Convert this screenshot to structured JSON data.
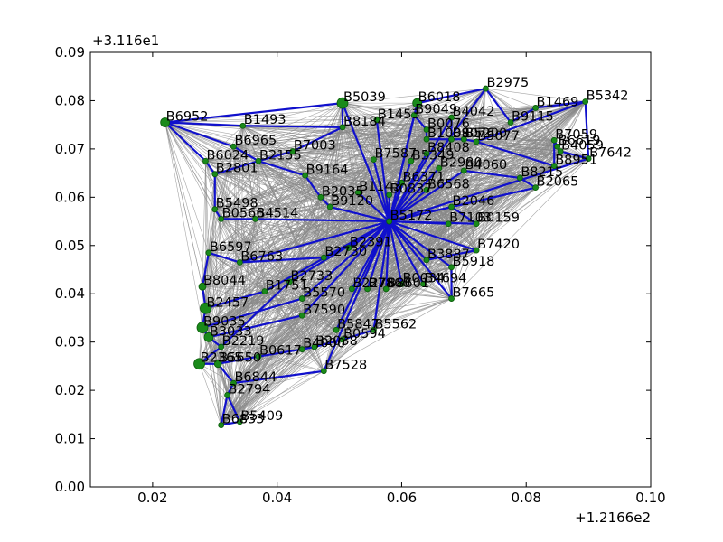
{
  "chart_data": {
    "type": "scatter",
    "subtype": "network-graph",
    "title": "",
    "xlabel": "",
    "ylabel": "",
    "x_offset_label": "+1.2166e2",
    "y_offset_label": "+3.116e1",
    "xlim": [
      0.01,
      0.1
    ],
    "ylim": [
      0.0,
      0.09
    ],
    "x_ticks": [
      0.02,
      0.04,
      0.06,
      0.08,
      0.1
    ],
    "x_tick_labels": [
      "0.02",
      "0.04",
      "0.06",
      "0.08",
      "0.10"
    ],
    "y_ticks": [
      0.0,
      0.01,
      0.02,
      0.03,
      0.04,
      0.05,
      0.06,
      0.07,
      0.08,
      0.09
    ],
    "y_tick_labels": [
      "0.00",
      "0.01",
      "0.02",
      "0.03",
      "0.04",
      "0.05",
      "0.06",
      "0.07",
      "0.08",
      "0.09"
    ],
    "grid": false,
    "colors": {
      "node": "#1a8a1a",
      "node_edge": "#0a5a0a",
      "mesh_edge": "#888888",
      "path_edge": "#1010cc"
    },
    "hub": "B5172",
    "nodes": [
      {
        "id": "B5172",
        "x": 0.058,
        "y": 0.055,
        "s": 3
      },
      {
        "id": "B2975",
        "x": 0.0735,
        "y": 0.0825,
        "s": 3
      },
      {
        "id": "B5342",
        "x": 0.0895,
        "y": 0.0798,
        "s": 3
      },
      {
        "id": "B1469",
        "x": 0.0815,
        "y": 0.0785,
        "s": 3
      },
      {
        "id": "B9115",
        "x": 0.0775,
        "y": 0.0755,
        "s": 3
      },
      {
        "id": "B7059",
        "x": 0.0845,
        "y": 0.0718,
        "s": 3
      },
      {
        "id": "B6619",
        "x": 0.085,
        "y": 0.0705,
        "s": 3
      },
      {
        "id": "B4059",
        "x": 0.0855,
        "y": 0.0695,
        "s": 3
      },
      {
        "id": "B7642",
        "x": 0.09,
        "y": 0.068,
        "s": 3
      },
      {
        "id": "B8951",
        "x": 0.0845,
        "y": 0.0665,
        "s": 3
      },
      {
        "id": "B5077",
        "x": 0.072,
        "y": 0.0715,
        "s": 3
      },
      {
        "id": "B5200",
        "x": 0.07,
        "y": 0.072,
        "s": 3
      },
      {
        "id": "B9076",
        "x": 0.068,
        "y": 0.072,
        "s": 3
      },
      {
        "id": "B1008",
        "x": 0.064,
        "y": 0.072,
        "s": 3
      },
      {
        "id": "B4042",
        "x": 0.068,
        "y": 0.0765,
        "s": 3
      },
      {
        "id": "B9049",
        "x": 0.062,
        "y": 0.077,
        "s": 3
      },
      {
        "id": "B0076",
        "x": 0.064,
        "y": 0.074,
        "s": 3
      },
      {
        "id": "B6018",
        "x": 0.0625,
        "y": 0.0795,
        "s": 5
      },
      {
        "id": "B5039",
        "x": 0.0505,
        "y": 0.0795,
        "s": 6
      },
      {
        "id": "B1453",
        "x": 0.056,
        "y": 0.076,
        "s": 3
      },
      {
        "id": "B8184",
        "x": 0.0505,
        "y": 0.0745,
        "s": 3
      },
      {
        "id": "B6952",
        "x": 0.022,
        "y": 0.0755,
        "s": 5
      },
      {
        "id": "B1493",
        "x": 0.0345,
        "y": 0.0748,
        "s": 3
      },
      {
        "id": "B6965",
        "x": 0.033,
        "y": 0.0705,
        "s": 3
      },
      {
        "id": "B7003",
        "x": 0.0425,
        "y": 0.0695,
        "s": 3
      },
      {
        "id": "B6024",
        "x": 0.0285,
        "y": 0.0675,
        "s": 3
      },
      {
        "id": "B2155",
        "x": 0.037,
        "y": 0.0675,
        "s": 3
      },
      {
        "id": "B2801",
        "x": 0.03,
        "y": 0.0648,
        "s": 3
      },
      {
        "id": "B9164",
        "x": 0.0445,
        "y": 0.0645,
        "s": 3
      },
      {
        "id": "B7587",
        "x": 0.0555,
        "y": 0.0678,
        "s": 3
      },
      {
        "id": "B5349",
        "x": 0.0615,
        "y": 0.0675,
        "s": 3
      },
      {
        "id": "B8408",
        "x": 0.064,
        "y": 0.069,
        "s": 3
      },
      {
        "id": "B2980",
        "x": 0.066,
        "y": 0.066,
        "s": 3
      },
      {
        "id": "B4060",
        "x": 0.07,
        "y": 0.0655,
        "s": 3
      },
      {
        "id": "B8215",
        "x": 0.079,
        "y": 0.064,
        "s": 3
      },
      {
        "id": "B2065",
        "x": 0.0815,
        "y": 0.062,
        "s": 3
      },
      {
        "id": "B6371",
        "x": 0.06,
        "y": 0.063,
        "s": 3
      },
      {
        "id": "B1143",
        "x": 0.053,
        "y": 0.061,
        "s": 3
      },
      {
        "id": "B0837",
        "x": 0.058,
        "y": 0.0605,
        "s": 3
      },
      {
        "id": "B6568",
        "x": 0.064,
        "y": 0.0615,
        "s": 3
      },
      {
        "id": "B2035",
        "x": 0.047,
        "y": 0.06,
        "s": 3
      },
      {
        "id": "B9120",
        "x": 0.0485,
        "y": 0.058,
        "s": 3
      },
      {
        "id": "B5498",
        "x": 0.03,
        "y": 0.0575,
        "s": 3
      },
      {
        "id": "B0566",
        "x": 0.031,
        "y": 0.0555,
        "s": 3
      },
      {
        "id": "B4514",
        "x": 0.0365,
        "y": 0.0555,
        "s": 3
      },
      {
        "id": "B2046",
        "x": 0.068,
        "y": 0.058,
        "s": 3
      },
      {
        "id": "B7103",
        "x": 0.0675,
        "y": 0.0545,
        "s": 3
      },
      {
        "id": "B0159",
        "x": 0.072,
        "y": 0.0545,
        "s": 3
      },
      {
        "id": "B2391",
        "x": 0.0515,
        "y": 0.0495,
        "s": 3
      },
      {
        "id": "B2730",
        "x": 0.0475,
        "y": 0.0475,
        "s": 3
      },
      {
        "id": "B6597",
        "x": 0.029,
        "y": 0.0485,
        "s": 3
      },
      {
        "id": "B6763",
        "x": 0.034,
        "y": 0.0465,
        "s": 3
      },
      {
        "id": "B3887",
        "x": 0.064,
        "y": 0.047,
        "s": 3
      },
      {
        "id": "B7420",
        "x": 0.072,
        "y": 0.049,
        "s": 3
      },
      {
        "id": "B5918",
        "x": 0.068,
        "y": 0.0455,
        "s": 3
      },
      {
        "id": "B8044",
        "x": 0.028,
        "y": 0.0415,
        "s": 4
      },
      {
        "id": "B2733",
        "x": 0.042,
        "y": 0.0425,
        "s": 3
      },
      {
        "id": "B1751",
        "x": 0.038,
        "y": 0.0405,
        "s": 3
      },
      {
        "id": "B4694",
        "x": 0.0635,
        "y": 0.042,
        "s": 3
      },
      {
        "id": "B0034",
        "x": 0.06,
        "y": 0.042,
        "s": 3
      },
      {
        "id": "B2276",
        "x": 0.052,
        "y": 0.041,
        "s": 3
      },
      {
        "id": "B7860",
        "x": 0.0545,
        "y": 0.041,
        "s": 3
      },
      {
        "id": "B8601",
        "x": 0.0575,
        "y": 0.041,
        "s": 3
      },
      {
        "id": "B7665",
        "x": 0.068,
        "y": 0.039,
        "s": 3
      },
      {
        "id": "B2457",
        "x": 0.0285,
        "y": 0.037,
        "s": 6
      },
      {
        "id": "B5570",
        "x": 0.044,
        "y": 0.039,
        "s": 3
      },
      {
        "id": "B7590",
        "x": 0.044,
        "y": 0.0355,
        "s": 3
      },
      {
        "id": "B9035",
        "x": 0.028,
        "y": 0.033,
        "s": 6
      },
      {
        "id": "B5847",
        "x": 0.0495,
        "y": 0.0325,
        "s": 3
      },
      {
        "id": "B5562",
        "x": 0.0555,
        "y": 0.0325,
        "s": 3
      },
      {
        "id": "B0594",
        "x": 0.0505,
        "y": 0.0305,
        "s": 3
      },
      {
        "id": "B3033",
        "x": 0.029,
        "y": 0.031,
        "s": 5
      },
      {
        "id": "B2219",
        "x": 0.031,
        "y": 0.029,
        "s": 3
      },
      {
        "id": "B4000",
        "x": 0.044,
        "y": 0.0285,
        "s": 3
      },
      {
        "id": "B2038",
        "x": 0.046,
        "y": 0.029,
        "s": 3
      },
      {
        "id": "B0617",
        "x": 0.037,
        "y": 0.027,
        "s": 3
      },
      {
        "id": "B2365",
        "x": 0.0275,
        "y": 0.0255,
        "s": 6
      },
      {
        "id": "B5650",
        "x": 0.0305,
        "y": 0.0255,
        "s": 4
      },
      {
        "id": "B7528",
        "x": 0.0475,
        "y": 0.024,
        "s": 3
      },
      {
        "id": "B6844",
        "x": 0.033,
        "y": 0.0215,
        "s": 3
      },
      {
        "id": "B2794",
        "x": 0.032,
        "y": 0.019,
        "s": 3
      },
      {
        "id": "B6833",
        "x": 0.031,
        "y": 0.0128,
        "s": 3
      },
      {
        "id": "B5409",
        "x": 0.034,
        "y": 0.0135,
        "s": 3
      }
    ],
    "path_edges": [
      [
        "B6952",
        "B1493"
      ],
      [
        "B6952",
        "B6965"
      ],
      [
        "B6952",
        "B6024"
      ],
      [
        "B6952",
        "B5039"
      ],
      [
        "B1493",
        "B8184"
      ],
      [
        "B6965",
        "B2155"
      ],
      [
        "B6024",
        "B2801"
      ],
      [
        "B2801",
        "B5498"
      ],
      [
        "B5498",
        "B0566"
      ],
      [
        "B0566",
        "B4514"
      ],
      [
        "B4514",
        "B5172"
      ],
      [
        "B2801",
        "B2155"
      ],
      [
        "B2155",
        "B9164"
      ],
      [
        "B7003",
        "B8184"
      ],
      [
        "B7003",
        "B2155"
      ],
      [
        "B9164",
        "B2035"
      ],
      [
        "B2035",
        "B9120"
      ],
      [
        "B9120",
        "B5172"
      ],
      [
        "B1143",
        "B5172"
      ],
      [
        "B7587",
        "B5172"
      ],
      [
        "B0837",
        "B5172"
      ],
      [
        "B6371",
        "B5172"
      ],
      [
        "B5349",
        "B5172"
      ],
      [
        "B8408",
        "B5172"
      ],
      [
        "B2980",
        "B5172"
      ],
      [
        "B4060",
        "B5172"
      ],
      [
        "B8215",
        "B2065"
      ],
      [
        "B2065",
        "B5172"
      ],
      [
        "B6568",
        "B5172"
      ],
      [
        "B2046",
        "B5172"
      ],
      [
        "B7103",
        "B5172"
      ],
      [
        "B0159",
        "B5172"
      ],
      [
        "B7420",
        "B5172"
      ],
      [
        "B5918",
        "B5172"
      ],
      [
        "B3887",
        "B5172"
      ],
      [
        "B4694",
        "B5172"
      ],
      [
        "B7665",
        "B5172"
      ],
      [
        "B8601",
        "B5172"
      ],
      [
        "B7860",
        "B5172"
      ],
      [
        "B2276",
        "B5172"
      ],
      [
        "B0034",
        "B5172"
      ],
      [
        "B2391",
        "B5172"
      ],
      [
        "B2730",
        "B5172"
      ],
      [
        "B2733",
        "B5172"
      ],
      [
        "B5570",
        "B5172"
      ],
      [
        "B7590",
        "B5172"
      ],
      [
        "B1751",
        "B5172"
      ],
      [
        "B6763",
        "B5172"
      ],
      [
        "B6597",
        "B6763"
      ],
      [
        "B6597",
        "B8044"
      ],
      [
        "B8044",
        "B2457"
      ],
      [
        "B2457",
        "B9035"
      ],
      [
        "B9035",
        "B3033"
      ],
      [
        "B3033",
        "B2219"
      ],
      [
        "B2219",
        "B2365"
      ],
      [
        "B2365",
        "B5650"
      ],
      [
        "B5650",
        "B6844"
      ],
      [
        "B6844",
        "B2794"
      ],
      [
        "B2794",
        "B6833"
      ],
      [
        "B6833",
        "B5409"
      ],
      [
        "B5409",
        "B2794"
      ],
      [
        "B5650",
        "B0617"
      ],
      [
        "B0617",
        "B4000"
      ],
      [
        "B4000",
        "B2038"
      ],
      [
        "B2038",
        "B0594"
      ],
      [
        "B0594",
        "B5562"
      ],
      [
        "B5562",
        "B5172"
      ],
      [
        "B5847",
        "B5172"
      ],
      [
        "B7528",
        "B5172"
      ],
      [
        "B7528",
        "B6844"
      ],
      [
        "B7665",
        "B5918"
      ],
      [
        "B5039",
        "B5172"
      ],
      [
        "B1453",
        "B5172"
      ],
      [
        "B9049",
        "B5172"
      ],
      [
        "B6018",
        "B5172"
      ],
      [
        "B4042",
        "B5172"
      ],
      [
        "B2975",
        "B5172"
      ],
      [
        "B2975",
        "B9115"
      ],
      [
        "B9115",
        "B1469"
      ],
      [
        "B1469",
        "B5342"
      ],
      [
        "B5342",
        "B7642"
      ],
      [
        "B7642",
        "B4059"
      ],
      [
        "B4059",
        "B6619"
      ],
      [
        "B6619",
        "B7059"
      ],
      [
        "B7059",
        "B8951"
      ],
      [
        "B8951",
        "B5077"
      ],
      [
        "B5077",
        "B5200"
      ],
      [
        "B5200",
        "B9076"
      ],
      [
        "B9076",
        "B1008"
      ],
      [
        "B1008",
        "B0076"
      ],
      [
        "B0076",
        "B9049"
      ],
      [
        "B5039",
        "B8184"
      ],
      [
        "B6018",
        "B2975"
      ],
      [
        "B4042",
        "B9076"
      ],
      [
        "B8215",
        "B4060"
      ],
      [
        "B2046",
        "B0159"
      ],
      [
        "B3887",
        "B7420"
      ],
      [
        "B1751",
        "B2457"
      ],
      [
        "B2730",
        "B6763"
      ],
      [
        "B5570",
        "B9035"
      ],
      [
        "B7590",
        "B3033"
      ],
      [
        "B2733",
        "B2219"
      ],
      [
        "B5342",
        "B5077"
      ],
      [
        "B7642",
        "B5172"
      ]
    ]
  }
}
